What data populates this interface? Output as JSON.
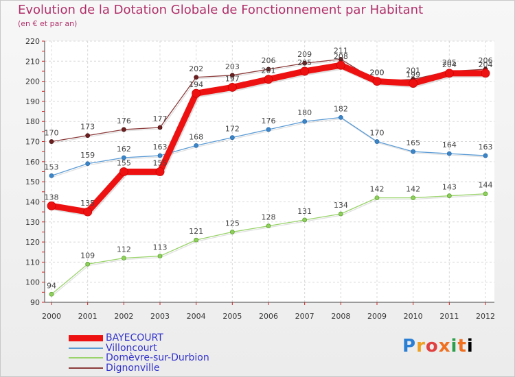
{
  "chart_data": {
    "type": "line",
    "title": "Evolution de la Dotation Globale de Fonctionnement par Habitant",
    "subtitle": "(en € et par an)",
    "x": [
      "2000",
      "2001",
      "2002",
      "2003",
      "2004",
      "2005",
      "2006",
      "2007",
      "2008",
      "2009",
      "2010",
      "2011",
      "2012"
    ],
    "ylim": [
      90,
      220
    ],
    "yticks": [
      90,
      100,
      110,
      120,
      130,
      140,
      150,
      160,
      170,
      180,
      190,
      200,
      210,
      220
    ],
    "grid": true,
    "legend_position": "bottom-left",
    "series": [
      {
        "name": "BAYECOURT",
        "color": "#ee1111",
        "values": [
          138,
          135,
          155,
          155,
          194,
          197,
          201,
          205,
          208,
          200,
          199,
          204,
          204
        ]
      },
      {
        "name": "Villoncourt",
        "color": "#5b9bd5",
        "values": [
          153,
          159,
          162,
          163,
          168,
          172,
          176,
          180,
          182,
          170,
          165,
          164,
          163
        ]
      },
      {
        "name": "Domèvre-sur-Durbion",
        "color": "#99d36a",
        "values": [
          94,
          109,
          112,
          113,
          121,
          125,
          128,
          131,
          134,
          142,
          142,
          143,
          144
        ]
      },
      {
        "name": "Dignonville",
        "color": "#8b3a3a",
        "values": [
          170,
          173,
          176,
          177,
          202,
          203,
          206,
          209,
          211,
          200,
          201,
          205,
          206
        ]
      }
    ]
  },
  "logo": {
    "letters": [
      "P",
      "r",
      "o",
      "x",
      "i",
      "t",
      "i"
    ]
  }
}
